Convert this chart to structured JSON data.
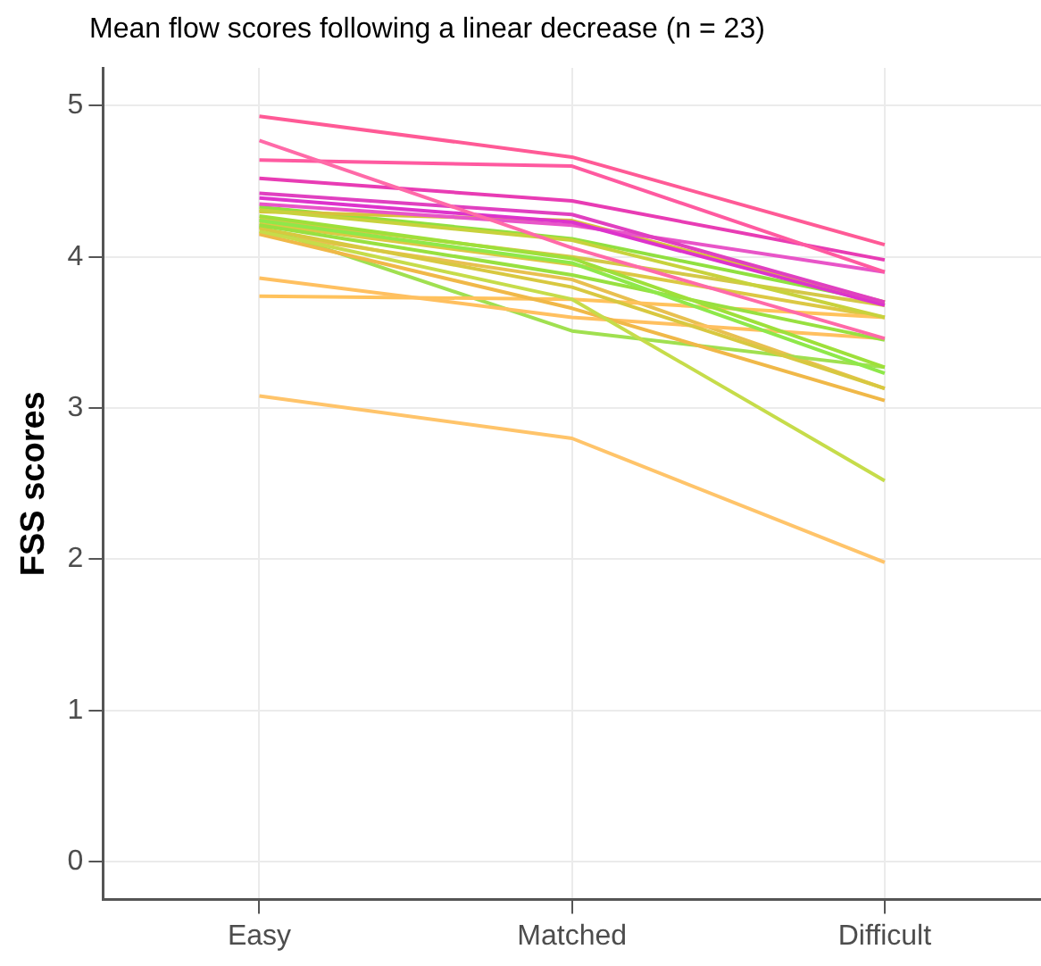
{
  "chart_data": {
    "type": "line",
    "title": "Mean flow scores following a linear decrease (n = 23)",
    "ylabel": "FSS scores",
    "categories": [
      "Easy",
      "Matched",
      "Difficult"
    ],
    "ylim": [
      -0.25,
      5.25
    ],
    "yticks": [
      0,
      1,
      2,
      3,
      4,
      5
    ],
    "grid": true,
    "series": [
      {
        "color": "#ff5a96",
        "values": [
          4.93,
          4.66,
          4.08
        ]
      },
      {
        "color": "#ff6aa8",
        "values": [
          4.77,
          4.06,
          3.46
        ]
      },
      {
        "color": "#ff5aa0",
        "values": [
          4.64,
          4.6,
          3.9
        ]
      },
      {
        "color": "#e83cb4",
        "values": [
          4.52,
          4.37,
          3.98
        ]
      },
      {
        "color": "#e040c0",
        "values": [
          4.42,
          4.28,
          3.7
        ]
      },
      {
        "color": "#dd33cc",
        "values": [
          4.39,
          4.23,
          3.68
        ]
      },
      {
        "color": "#e855c8",
        "values": [
          4.35,
          4.21,
          3.9
        ]
      },
      {
        "color": "#c8d23c",
        "values": [
          4.31,
          4.11,
          3.6
        ]
      },
      {
        "color": "#9ee03a",
        "values": [
          4.27,
          3.99,
          3.27
        ]
      },
      {
        "color": "#8ee84a",
        "values": [
          4.24,
          3.96,
          3.23
        ]
      },
      {
        "color": "#98e040",
        "values": [
          4.21,
          3.88,
          3.45
        ]
      },
      {
        "color": "#d8c840",
        "values": [
          4.19,
          3.8,
          3.13
        ]
      },
      {
        "color": "#c6dc4a",
        "values": [
          4.17,
          3.72,
          2.52
        ]
      },
      {
        "color": "#f0b848",
        "values": [
          4.15,
          3.66,
          3.05
        ]
      },
      {
        "color": "#ffc060",
        "values": [
          3.86,
          3.6,
          3.46
        ]
      },
      {
        "color": "#ffc25c",
        "values": [
          3.74,
          3.72,
          3.6
        ]
      },
      {
        "color": "#ffc46a",
        "values": [
          3.08,
          2.8,
          1.98
        ]
      },
      {
        "color": "#d8c23c",
        "values": [
          4.3,
          4.24,
          3.7
        ]
      },
      {
        "color": "#d4c848",
        "values": [
          4.25,
          4.0,
          3.68
        ]
      },
      {
        "color": "#a0e050",
        "values": [
          4.2,
          3.51,
          3.27
        ]
      },
      {
        "color": "#e8c050",
        "values": [
          4.16,
          3.85,
          3.13
        ]
      },
      {
        "color": "#dcc844",
        "values": [
          4.22,
          3.95,
          3.6
        ]
      },
      {
        "color": "#90e040",
        "values": [
          4.33,
          4.12,
          3.7
        ]
      }
    ]
  }
}
